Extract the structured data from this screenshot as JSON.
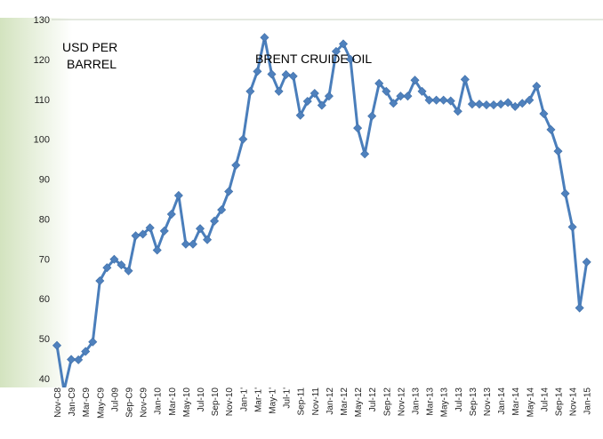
{
  "chart_data": {
    "type": "line",
    "title": "",
    "xlabel": "",
    "ylabel": "",
    "annotations": [
      "USD PER",
      "BARREL",
      "BRENT CRUIDE OIL"
    ],
    "ylim": [
      40,
      130
    ],
    "yticks": [
      40,
      50,
      60,
      70,
      80,
      90,
      100,
      110,
      120,
      130
    ],
    "grid": false,
    "legend": "none",
    "colors": {
      "line": "#4a7ebb",
      "marker": "#4f81bd",
      "background_gradient": [
        "#d3e3bf",
        "#ffffff"
      ]
    },
    "x": [
      "Nov-08",
      "Dec-08",
      "Jan-09",
      "Feb-09",
      "Mar-09",
      "Apr-09",
      "May-09",
      "Jun-09",
      "Jul-09",
      "Aug-09",
      "Sep-09",
      "Oct-09",
      "Nov-09",
      "Dec-09",
      "Jan-10",
      "Feb-10",
      "Mar-10",
      "Apr-10",
      "May-10",
      "Jun-10",
      "Jul-10",
      "Aug-10",
      "Sep-10",
      "Oct-10",
      "Nov-10",
      "Dec-10",
      "Jan-11",
      "Feb-11",
      "Mar-11",
      "Apr-11",
      "May-11",
      "Jun-11",
      "Jul-11",
      "Aug-11",
      "Sep-11",
      "Oct-11",
      "Nov-11",
      "Dec-11",
      "Jan-12",
      "Feb-12",
      "Mar-12",
      "Apr-12",
      "May-12",
      "Jun-12",
      "Jul-12",
      "Aug-12",
      "Sep-12",
      "Oct-12",
      "Nov-12",
      "Dec-12",
      "Jan-13",
      "Feb-13",
      "Mar-13",
      "Apr-13",
      "May-13",
      "Jun-13",
      "Jul-13",
      "Aug-13",
      "Sep-13",
      "Oct-13",
      "Nov-13",
      "Dec-13",
      "Jan-14",
      "Feb-14",
      "Mar-14",
      "Apr-14",
      "May-14",
      "Jun-14",
      "Jul-14",
      "Aug-14",
      "Sep-14",
      "Oct-14",
      "Nov-14",
      "Dec-14",
      "Jan-15"
    ],
    "tick_labels": [
      "Nov-C8",
      "Jan-C9",
      "Mar-C9",
      "May-C9",
      "Jul-09",
      "Sep-C9",
      "Nov-C9",
      "Jan-10",
      "Mar-10",
      "May-10",
      "Jul-10",
      "Sep-10",
      "Nov-10",
      "Jan-1'",
      "Mar-1'",
      "May-1'",
      "Jul-1'",
      "Sep-11",
      "Nov-11",
      "Jan-12",
      "Mar-12",
      "May-12",
      "Jul-12",
      "Sep-12",
      "Nov-12",
      "Jan-13",
      "Mar-13",
      "May-13",
      "Jul-13",
      "Sep-13",
      "Nov-13",
      "Jan-14",
      "Mar-14",
      "May-14",
      "Jul-14",
      "Sep-14",
      "Nov-14",
      "Jan-15"
    ],
    "series": [
      {
        "values": [
          48.3,
          37,
          44.8,
          44.7,
          46.8,
          49.2,
          64.5,
          67.8,
          69.9,
          68.5,
          67,
          75.8,
          76.2,
          77.8,
          72.2,
          77,
          81.2,
          85.9,
          73.7,
          73.7,
          77.6,
          74.8,
          79.5,
          82.3,
          86.9,
          93.5,
          100,
          112,
          117,
          125.5,
          116.3,
          112,
          116.2,
          115.8,
          106,
          109.5,
          111.5,
          108.5,
          110.8,
          122,
          123.9,
          120,
          102.8,
          96.3,
          105.8,
          114,
          112,
          109,
          110.8,
          110.8,
          114.8,
          112,
          109.8,
          109.8,
          109.8,
          109.6,
          107,
          115,
          108.8,
          108.8,
          108.6,
          108.6,
          108.8,
          109.2,
          108.2,
          109,
          109.8,
          113.3,
          106.4,
          102.4,
          97,
          86.4,
          78,
          57.7,
          69.2
        ]
      }
    ]
  }
}
